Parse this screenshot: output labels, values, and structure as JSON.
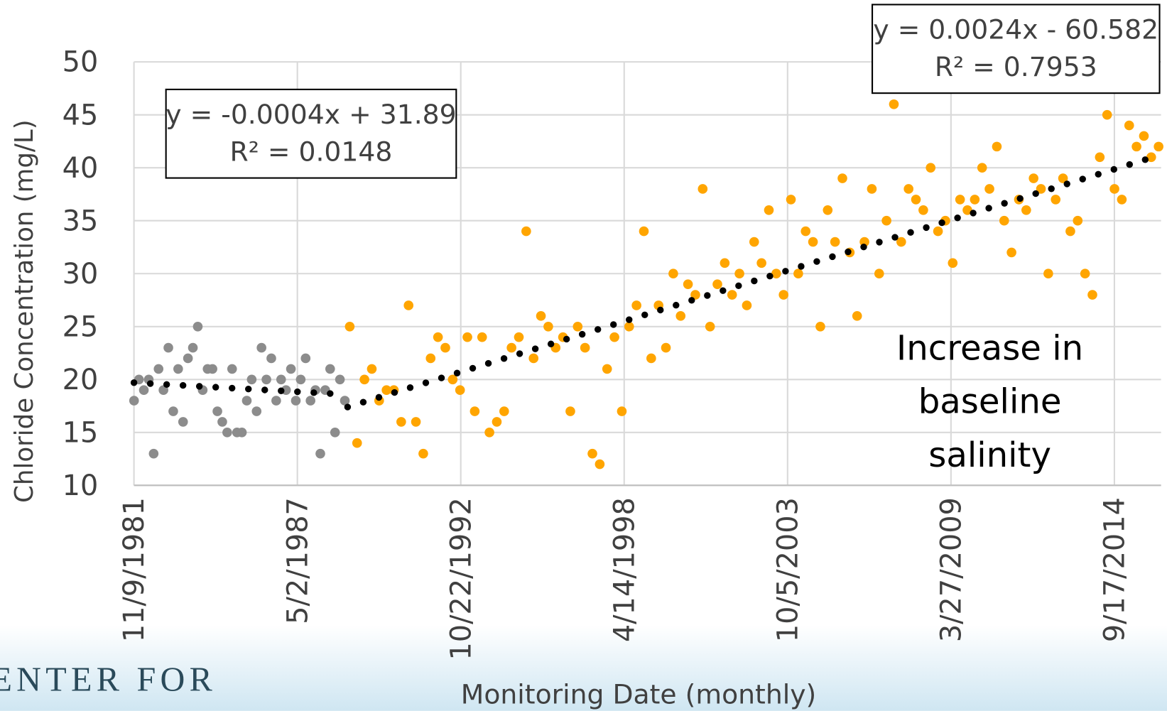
{
  "chart_data": {
    "type": "scatter",
    "x_label": "Monitoring Date (monthly)",
    "y_label": "Chloride Concentration (mg/L)",
    "xlim": [
      29899,
      42470
    ],
    "xticks": [
      {
        "value": 29899,
        "label": "11/9/1981"
      },
      {
        "value": 31899,
        "label": "5/2/1987"
      },
      {
        "value": 33899,
        "label": "10/22/1992"
      },
      {
        "value": 35899,
        "label": "4/14/1998"
      },
      {
        "value": 37899,
        "label": "10/5/2003"
      },
      {
        "value": 39899,
        "label": "3/27/2009"
      },
      {
        "value": 41899,
        "label": "9/17/2014"
      }
    ],
    "ylim": [
      10,
      50
    ],
    "yticks": [
      10,
      15,
      20,
      25,
      30,
      35,
      40,
      45,
      50
    ],
    "grid": true,
    "series": [
      {
        "color": "#8c8c8c",
        "x": [
          29900,
          29960,
          30020,
          30080,
          30140,
          30200,
          30260,
          30320,
          30380,
          30440,
          30500,
          30560,
          30620,
          30680,
          30740,
          30800,
          30860,
          30920,
          30980,
          31040,
          31100,
          31160,
          31220,
          31280,
          31340,
          31400,
          31460,
          31520,
          31580,
          31640,
          31700,
          31760,
          31820,
          31880,
          31940,
          32000,
          32060,
          32120,
          32180,
          32240,
          32300,
          32360,
          32420,
          32480
        ],
        "values": [
          18,
          20,
          19,
          20,
          13,
          21,
          19,
          23,
          17,
          21,
          16,
          22,
          23,
          25,
          19,
          21,
          21,
          17,
          16,
          15,
          21,
          15,
          15,
          18,
          20,
          17,
          23,
          20,
          22,
          18,
          20,
          19,
          21,
          18,
          20,
          22,
          18,
          19,
          13,
          19,
          21,
          15,
          20,
          18
        ]
      },
      {
        "color": "#ffa500",
        "x": [
          32540,
          32630,
          32720,
          32810,
          32900,
          32990,
          33080,
          33170,
          33260,
          33350,
          33440,
          33530,
          33620,
          33710,
          33800,
          33890,
          33980,
          34070,
          34160,
          34250,
          34340,
          34430,
          34520,
          34610,
          34700,
          34790,
          34880,
          34970,
          35060,
          35150,
          35240,
          35330,
          35420,
          35510,
          35600,
          35690,
          35780,
          35870,
          35960,
          36050,
          36140,
          36230,
          36320,
          36410,
          36500,
          36590,
          36680,
          36770,
          36860,
          36950,
          37040,
          37130,
          37220,
          37310,
          37400,
          37490,
          37580,
          37670,
          37760,
          37850,
          37940,
          38030,
          38120,
          38210,
          38300,
          38390,
          38480,
          38570,
          38660,
          38750,
          38840,
          38930,
          39020,
          39110,
          39200,
          39290,
          39380,
          39470,
          39560,
          39650,
          39740,
          39830,
          39920,
          40010,
          40100,
          40190,
          40280,
          40370,
          40460,
          40550,
          40640,
          40730,
          40820,
          40910,
          41000,
          41090,
          41180,
          41270,
          41360,
          41450,
          41540,
          41630,
          41720,
          41810,
          41900,
          41990,
          42080,
          42170,
          42260,
          42350,
          42440
        ],
        "values": [
          25,
          14,
          20,
          21,
          18,
          19,
          19,
          16,
          27,
          16,
          13,
          22,
          24,
          23,
          20,
          19,
          24,
          17,
          24,
          15,
          16,
          17,
          23,
          24,
          34,
          22,
          26,
          25,
          23,
          24,
          17,
          25,
          23,
          13,
          12,
          21,
          24,
          17,
          25,
          27,
          34,
          22,
          27,
          23,
          30,
          26,
          29,
          28,
          38,
          25,
          29,
          31,
          28,
          30,
          27,
          33,
          31,
          36,
          30,
          28,
          37,
          30,
          34,
          33,
          25,
          36,
          33,
          39,
          32,
          26,
          33,
          38,
          30,
          35,
          46,
          33,
          38,
          37,
          36,
          40,
          34,
          35,
          31,
          37,
          36,
          37,
          40,
          38,
          42,
          35,
          32,
          37,
          36,
          39,
          38,
          30,
          37,
          39,
          34,
          35,
          30,
          28,
          41,
          45,
          38,
          37,
          44,
          42,
          43,
          41,
          42
        ]
      }
    ],
    "trendlines": [
      {
        "color": "#000000",
        "x": [
          29899,
          32469
        ],
        "values": [
          19.7,
          18.6
        ]
      },
      {
        "color": "#000000",
        "x": [
          32514,
          42291
        ],
        "values": [
          17.4,
          40.8
        ]
      }
    ],
    "annotations": [
      {
        "lines": [
          "y = -0.0004x + 31.89",
          "R² = 0.0148"
        ]
      },
      {
        "lines": [
          "y = 0.0024x - 60.582",
          "R² = 0.7953"
        ]
      },
      {
        "lines": [
          "Increase in",
          "baseline",
          "salinity"
        ]
      }
    ],
    "logo_text": "ENTER FOR"
  }
}
